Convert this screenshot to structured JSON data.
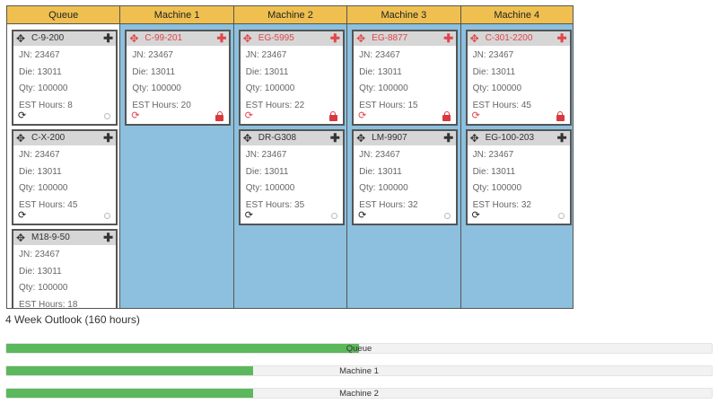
{
  "columns": [
    {
      "name": "Queue",
      "type": "queue",
      "cards": [
        {
          "title": "C-9-200",
          "jn": "JN: 23467",
          "die": "Die: 13011",
          "qty": "Qty: 100000",
          "est": "EST Hours: 8",
          "locked": false
        },
        {
          "title": "C-X-200",
          "jn": "JN: 23467",
          "die": "Die: 13011",
          "qty": "Qty: 100000",
          "est": "EST Hours: 45",
          "locked": false
        },
        {
          "title": "M18-9-50",
          "jn": "JN: 23467",
          "die": "Die: 13011",
          "qty": "Qty: 100000",
          "est": "EST Hours: 18",
          "locked": false
        }
      ]
    },
    {
      "name": "Machine 1",
      "type": "machine",
      "cards": [
        {
          "title": "C-99-201",
          "jn": "JN: 23467",
          "die": "Die: 13011",
          "qty": "Qty: 100000",
          "est": "EST Hours: 20",
          "locked": true
        }
      ]
    },
    {
      "name": "Machine 2",
      "type": "machine",
      "cards": [
        {
          "title": "EG-5995",
          "jn": "JN: 23467",
          "die": "Die: 13011",
          "qty": "Qty: 100000",
          "est": "EST Hours: 22",
          "locked": true
        },
        {
          "title": "DR-G308",
          "jn": "JN: 23467",
          "die": "Die: 13011",
          "qty": "Qty: 100000",
          "est": "EST Hours: 35",
          "locked": false
        }
      ]
    },
    {
      "name": "Machine 3",
      "type": "machine",
      "cards": [
        {
          "title": "EG-8877",
          "jn": "JN: 23467",
          "die": "Die: 13011",
          "qty": "Qty: 100000",
          "est": "EST Hours: 15",
          "locked": true
        },
        {
          "title": "LM-9907",
          "jn": "JN: 23467",
          "die": "Die: 13011",
          "qty": "Qty: 100000",
          "est": "EST Hours: 32",
          "locked": false
        }
      ]
    },
    {
      "name": "Machine 4",
      "type": "machine",
      "cards": [
        {
          "title": "C-301-2200",
          "jn": "JN: 23467",
          "die": "Die: 13011",
          "qty": "Qty: 100000",
          "est": "EST Hours: 45",
          "locked": true
        },
        {
          "title": "EG-100-203",
          "jn": "JN: 23467",
          "die": "Die: 13011",
          "qty": "Qty: 100000",
          "est": "EST Hours: 32",
          "locked": false
        }
      ]
    }
  ],
  "icons": {
    "move": "move-arrows-icon",
    "add": "plus-icon",
    "refresh": "refresh-icon",
    "lock": "lock-icon",
    "toggle": "radio-icon"
  },
  "colors": {
    "header": "#efc04f",
    "machine_bg": "#8cc0de",
    "bar_fill": "#5cb85c",
    "locked_accent": "#e0464a"
  },
  "outlook": {
    "title": "4 Week Outlook (160 hours)",
    "bars": [
      {
        "label": "Queue",
        "percent": 50
      },
      {
        "label": "Machine 1",
        "percent": 35
      },
      {
        "label": "Machine 2",
        "percent": 35
      }
    ]
  }
}
